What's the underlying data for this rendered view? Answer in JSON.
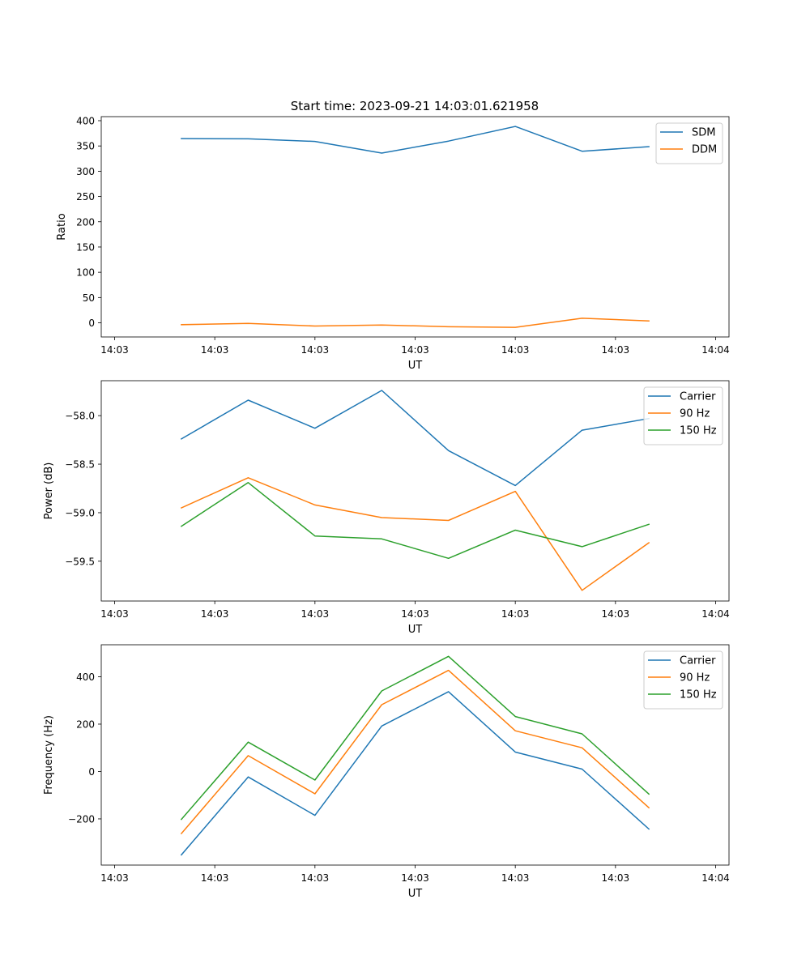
{
  "figure_title": "Start time: 2023-09-21 14:03:01.621958",
  "colors": {
    "blue": "#1f77b4",
    "orange": "#ff7f0e",
    "green": "#2ca02c"
  },
  "chart_data": [
    {
      "type": "line",
      "title": "Start time: 2023-09-21 14:03:01.621958",
      "xlabel": "UT",
      "ylabel": "Ratio",
      "x": [
        1,
        2,
        3,
        4,
        5,
        6,
        7,
        8
      ],
      "xlim": [
        -0.2,
        9.2
      ],
      "xticks": [
        0,
        1.5,
        3,
        4.5,
        6,
        7.5,
        9
      ],
      "xtick_labels": [
        "14:03",
        "14:03",
        "14:03",
        "14:03",
        "14:03",
        "14:03",
        "14:04"
      ],
      "ylim": [
        -28,
        408
      ],
      "yticks": [
        0,
        50,
        100,
        150,
        200,
        250,
        300,
        350,
        400
      ],
      "ytick_labels": [
        "0",
        "50",
        "100",
        "150",
        "200",
        "250",
        "300",
        "350",
        "400"
      ],
      "legend": "top-right",
      "series": [
        {
          "name": "SDM",
          "color": "#1f77b4",
          "values": [
            364.6,
            364.1,
            358.9,
            335.8,
            359.6,
            388.6,
            339.5,
            348.6
          ]
        },
        {
          "name": "DDM",
          "color": "#ff7f0e",
          "values": [
            -3.7,
            -1.0,
            -6.4,
            -4.2,
            -7.8,
            -9.0,
            9.1,
            3.8
          ]
        }
      ]
    },
    {
      "type": "line",
      "title": "",
      "xlabel": "UT",
      "ylabel": "Power (dB)",
      "x": [
        1,
        2,
        3,
        4,
        5,
        6,
        7,
        8
      ],
      "xlim": [
        -0.2,
        9.2
      ],
      "xticks": [
        0,
        1.5,
        3,
        4.5,
        6,
        7.5,
        9
      ],
      "xtick_labels": [
        "14:03",
        "14:03",
        "14:03",
        "14:03",
        "14:03",
        "14:03",
        "14:04"
      ],
      "ylim": [
        -59.91,
        -57.64
      ],
      "yticks": [
        -59.5,
        -59.0,
        -58.5,
        -58.0
      ],
      "ytick_labels": [
        "−59.5",
        "−59.0",
        "−58.5",
        "−58.0"
      ],
      "legend": "top-right",
      "series": [
        {
          "name": "Carrier",
          "color": "#1f77b4",
          "values": [
            -58.24,
            -57.84,
            -58.13,
            -57.74,
            -58.36,
            -58.72,
            -58.15,
            -58.03
          ]
        },
        {
          "name": "90 Hz",
          "color": "#ff7f0e",
          "values": [
            -58.95,
            -58.64,
            -58.92,
            -59.05,
            -59.08,
            -58.78,
            -59.8,
            -59.31
          ]
        },
        {
          "name": "150 Hz",
          "color": "#2ca02c",
          "values": [
            -59.14,
            -58.69,
            -59.24,
            -59.27,
            -59.47,
            -59.18,
            -59.35,
            -59.12
          ]
        }
      ]
    },
    {
      "type": "line",
      "title": "",
      "xlabel": "UT",
      "ylabel": "Frequency (Hz)",
      "x": [
        1,
        2,
        3,
        4,
        5,
        6,
        7,
        8
      ],
      "xlim": [
        -0.2,
        9.2
      ],
      "xticks": [
        0,
        1.5,
        3,
        4.5,
        6,
        7.5,
        9
      ],
      "xtick_labels": [
        "14:03",
        "14:03",
        "14:03",
        "14:03",
        "14:03",
        "14:03",
        "14:04"
      ],
      "ylim": [
        -395,
        535
      ],
      "yticks": [
        -200,
        0,
        200,
        400
      ],
      "ytick_labels": [
        "−200",
        "0",
        "200",
        "400"
      ],
      "legend": "top-right",
      "series": [
        {
          "name": "Carrier",
          "color": "#1f77b4",
          "values": [
            -352,
            -23,
            -185,
            192,
            337,
            82,
            10,
            -243
          ]
        },
        {
          "name": "90 Hz",
          "color": "#ff7f0e",
          "values": [
            -262,
            67,
            -94,
            282,
            427,
            172,
            100,
            -153
          ]
        },
        {
          "name": "150 Hz",
          "color": "#2ca02c",
          "values": [
            -202,
            124,
            -36,
            340,
            486,
            232,
            159,
            -95
          ]
        }
      ]
    }
  ]
}
